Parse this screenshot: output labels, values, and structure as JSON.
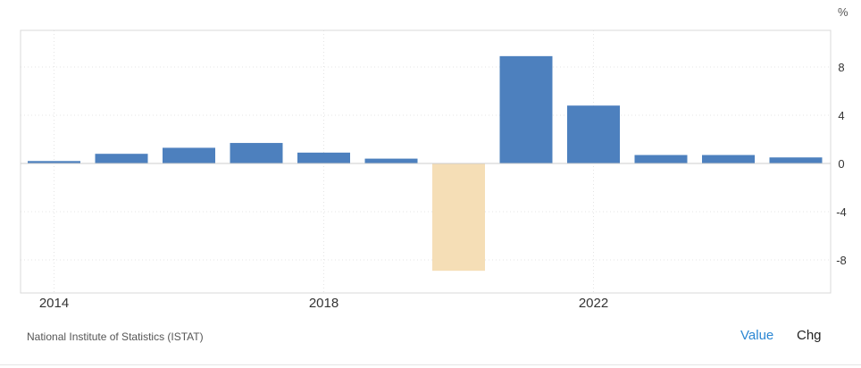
{
  "chart_data": {
    "type": "bar",
    "title": "",
    "xlabel": "",
    "ylabel": "",
    "unit": "%",
    "categories": [
      "2014",
      "2015",
      "2016",
      "2017",
      "2018",
      "2019",
      "2020",
      "2021",
      "2022",
      "2023",
      "2024",
      "2025"
    ],
    "values": [
      0.2,
      0.8,
      1.3,
      1.7,
      0.9,
      0.4,
      -8.9,
      8.9,
      4.8,
      0.7,
      0.7,
      0.5
    ],
    "x_tick_labels": [
      "2014",
      "2018",
      "2022"
    ],
    "y_tick_labels": [
      "8",
      "4",
      "0",
      "-4",
      "-8"
    ],
    "ylim": [
      -10.5,
      11
    ],
    "grid": true,
    "colors": {
      "positive": "#4d80be",
      "negative": "#f5deb6"
    }
  },
  "footer": {
    "source": "National Institute of Statistics (ISTAT)",
    "value_label": "Value",
    "chg_label": "Chg"
  }
}
